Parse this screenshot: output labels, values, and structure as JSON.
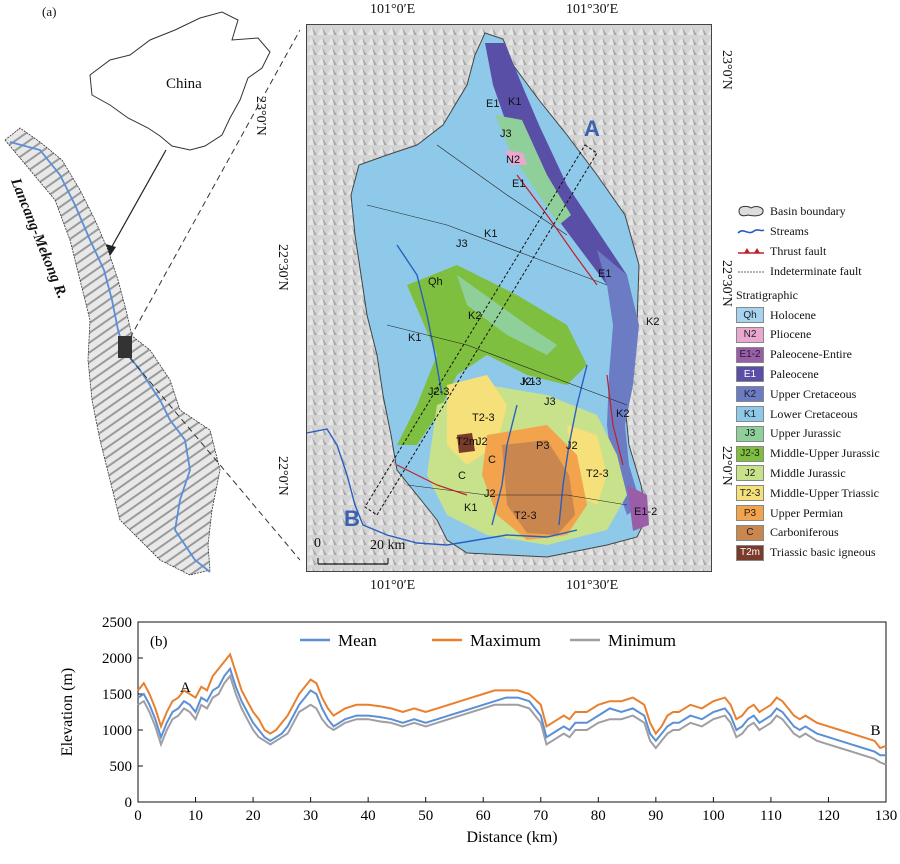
{
  "panel_a": {
    "label": "(a)",
    "china_label": "China",
    "river_label": "Lancang-Mekong R.",
    "profile_start": "A",
    "profile_end": "B",
    "lon_top": [
      "101°0′E",
      "101°30′E"
    ],
    "lon_bottom": [
      "101°0′E",
      "101°30′E"
    ],
    "lat_left": [
      "23°0′N",
      "22°30′N",
      "22°0′N"
    ],
    "lat_right": [
      "23°0′N",
      "22°30′N",
      "22°0′N"
    ],
    "scale_zero": "0",
    "scale_label": "20 km",
    "legend": {
      "symbols": [
        {
          "name": "Basin boundary"
        },
        {
          "name": "Streams"
        },
        {
          "name": "Thrust fault"
        },
        {
          "name": "Indeterminate fault"
        }
      ],
      "stratigraphic_title": "Stratigraphic",
      "units": [
        {
          "code": "Qh",
          "name": "Holocene",
          "color": "#a6d3ee"
        },
        {
          "code": "N2",
          "name": "Pliocene",
          "color": "#e8a8cf"
        },
        {
          "code": "E1-2",
          "name": "Paleocene-Entire",
          "color": "#9a5ea8"
        },
        {
          "code": "E1",
          "name": "Paleocene",
          "color": "#5a4fa6"
        },
        {
          "code": "K2",
          "name": "Upper Cretaceous",
          "color": "#6b7cc4"
        },
        {
          "code": "K1",
          "name": "Lower Cretaceous",
          "color": "#8fc9ea"
        },
        {
          "code": "J3",
          "name": "Upper Jurassic",
          "color": "#8fcf9a"
        },
        {
          "code": "J2-3",
          "name": "Middle-Upper Jurassic",
          "color": "#7fbf3f"
        },
        {
          "code": "J2",
          "name": "Middle Jurassic",
          "color": "#c7e28a"
        },
        {
          "code": "T2-3",
          "name": "Middle-Upper Triassic",
          "color": "#f5e07a"
        },
        {
          "code": "P3",
          "name": "Upper Permian",
          "color": "#f3a34c"
        },
        {
          "code": "C",
          "name": "Carboniferous",
          "color": "#c9864f"
        },
        {
          "code": "T2m",
          "name": "Triassic basic igneous",
          "color": "#7a3b2a"
        }
      ]
    },
    "map_labels": [
      "E1",
      "K1",
      "J3",
      "N2",
      "E1",
      "J3",
      "K1",
      "Qh",
      "K2",
      "E1",
      "K2",
      "K1",
      "J2-3",
      "K1",
      "J3",
      "T2-3",
      "T2m",
      "J2",
      "C",
      "P3",
      "J2",
      "T2-3",
      "C",
      "J2",
      "K1",
      "T2-3",
      "K2",
      "E1-2",
      "J2-3"
    ]
  },
  "panel_b": {
    "label": "(b)",
    "chart_data": {
      "type": "line",
      "xlabel": "Distance (km)",
      "ylabel": "Elevation (m)",
      "xlim": [
        0,
        130
      ],
      "ylim": [
        0,
        2500
      ],
      "xticks": [
        0,
        10,
        20,
        30,
        40,
        50,
        60,
        70,
        80,
        90,
        100,
        110,
        120,
        130
      ],
      "yticks": [
        0,
        500,
        1000,
        1500,
        2000,
        2500
      ],
      "legend_position": "top",
      "annotations": [
        {
          "text": "A",
          "x": 8,
          "y": 1500
        },
        {
          "text": "B",
          "x": 128,
          "y": 900
        }
      ],
      "x": [
        0,
        1,
        2,
        3,
        4,
        5,
        6,
        7,
        8,
        9,
        10,
        11,
        12,
        13,
        14,
        15,
        16,
        17,
        18,
        19,
        20,
        21,
        22,
        23,
        24,
        25,
        26,
        27,
        28,
        29,
        30,
        31,
        32,
        33,
        34,
        35,
        36,
        38,
        40,
        42,
        44,
        46,
        48,
        50,
        52,
        54,
        56,
        58,
        60,
        62,
        64,
        66,
        68,
        70,
        71,
        72,
        73,
        74,
        75,
        76,
        78,
        80,
        82,
        84,
        86,
        88,
        89,
        90,
        91,
        92,
        93,
        94,
        96,
        98,
        100,
        102,
        103,
        104,
        105,
        106,
        107,
        108,
        110,
        111,
        112,
        113,
        114,
        115,
        116,
        118,
        120,
        122,
        124,
        126,
        128,
        129,
        130
      ],
      "series": [
        {
          "name": "Mean",
          "color": "#5b8fd6",
          "values": [
            1450,
            1500,
            1350,
            1150,
            900,
            1100,
            1250,
            1300,
            1400,
            1350,
            1250,
            1450,
            1400,
            1550,
            1600,
            1750,
            1850,
            1600,
            1400,
            1250,
            1100,
            1000,
            900,
            850,
            900,
            950,
            1050,
            1200,
            1350,
            1450,
            1550,
            1500,
            1300,
            1150,
            1050,
            1100,
            1150,
            1200,
            1200,
            1180,
            1150,
            1100,
            1150,
            1100,
            1150,
            1200,
            1250,
            1300,
            1350,
            1400,
            1450,
            1450,
            1400,
            1200,
            900,
            950,
            1000,
            1050,
            1000,
            1100,
            1100,
            1200,
            1300,
            1250,
            1300,
            1200,
            950,
            850,
            950,
            1050,
            1100,
            1100,
            1200,
            1150,
            1250,
            1300,
            1200,
            1000,
            1050,
            1150,
            1200,
            1100,
            1200,
            1300,
            1250,
            1150,
            1050,
            1000,
            1050,
            950,
            900,
            850,
            800,
            750,
            700,
            650,
            650
          ]
        },
        {
          "name": "Maximum",
          "color": "#e8802f",
          "values": [
            1550,
            1650,
            1500,
            1300,
            1050,
            1250,
            1400,
            1450,
            1550,
            1500,
            1450,
            1600,
            1550,
            1750,
            1850,
            1950,
            2050,
            1800,
            1550,
            1400,
            1250,
            1150,
            1000,
            950,
            1000,
            1100,
            1200,
            1350,
            1500,
            1600,
            1700,
            1650,
            1450,
            1300,
            1200,
            1250,
            1300,
            1350,
            1350,
            1330,
            1300,
            1250,
            1300,
            1250,
            1300,
            1350,
            1400,
            1450,
            1500,
            1550,
            1550,
            1550,
            1500,
            1350,
            1050,
            1100,
            1150,
            1200,
            1150,
            1250,
            1250,
            1350,
            1400,
            1400,
            1450,
            1350,
            1100,
            950,
            1050,
            1200,
            1250,
            1250,
            1350,
            1300,
            1400,
            1450,
            1350,
            1150,
            1200,
            1300,
            1350,
            1250,
            1350,
            1450,
            1400,
            1300,
            1200,
            1150,
            1200,
            1100,
            1050,
            1000,
            950,
            900,
            850,
            750,
            780
          ]
        },
        {
          "name": "Minimum",
          "color": "#9e9ea4",
          "values": [
            1350,
            1400,
            1250,
            1050,
            800,
            1000,
            1150,
            1200,
            1300,
            1250,
            1150,
            1350,
            1300,
            1450,
            1500,
            1650,
            1750,
            1500,
            1300,
            1150,
            1000,
            900,
            850,
            800,
            850,
            900,
            950,
            1100,
            1250,
            1300,
            1350,
            1300,
            1150,
            1050,
            1000,
            1050,
            1100,
            1150,
            1150,
            1120,
            1100,
            1050,
            1100,
            1050,
            1100,
            1150,
            1200,
            1250,
            1300,
            1350,
            1350,
            1350,
            1300,
            1100,
            800,
            850,
            900,
            950,
            900,
            1000,
            1000,
            1100,
            1150,
            1150,
            1200,
            1100,
            850,
            750,
            850,
            950,
            1000,
            1000,
            1100,
            1050,
            1150,
            1200,
            1100,
            900,
            950,
            1050,
            1100,
            1000,
            1100,
            1200,
            1150,
            1050,
            950,
            900,
            950,
            850,
            800,
            750,
            700,
            650,
            600,
            550,
            520
          ]
        }
      ]
    }
  }
}
